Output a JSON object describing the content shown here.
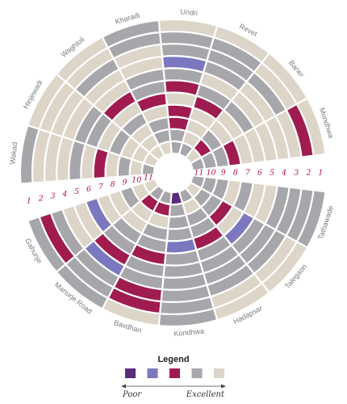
{
  "chart_data": {
    "type": "radial-heatmap",
    "title": "",
    "rings": [
      "1",
      "2",
      "3",
      "4",
      "5",
      "6",
      "7",
      "8",
      "9",
      "10",
      "11"
    ],
    "locations": [
      "Undri",
      "Revet",
      "Baner",
      "Mundhwa",
      "Tathawade",
      "Talegaon",
      "Hadapsar",
      "Kondhwa",
      "Bavdhan",
      "Manurje Road",
      "Gahunje",
      "Wakad",
      "Hinjewadi",
      "Waghloli",
      "Kharadi"
    ],
    "scale": {
      "levels": [
        1,
        2,
        3,
        4,
        5
      ],
      "colors": [
        "#5b2a78",
        "#7b78c0",
        "#a01c50",
        "#a7a7ab",
        "#dcd5c8"
      ],
      "low_label": "Poor",
      "high_label": "Excellent"
    },
    "values": [
      [
        5,
        4,
        4,
        2,
        4,
        3,
        5,
        3,
        3,
        4,
        4
      ],
      [
        5,
        4,
        4,
        4,
        5,
        4,
        3,
        5,
        5,
        5,
        4
      ],
      [
        5,
        5,
        4,
        5,
        5,
        4,
        5,
        5,
        4,
        3,
        5
      ],
      [
        5,
        3,
        5,
        5,
        5,
        5,
        5,
        3,
        4,
        4,
        4
      ],
      [
        4,
        4,
        4,
        4,
        5,
        5,
        4,
        5,
        4,
        4,
        4
      ],
      [
        5,
        5,
        4,
        4,
        4,
        2,
        5,
        3,
        4,
        4,
        5
      ],
      [
        5,
        5,
        4,
        4,
        4,
        4,
        3,
        4,
        4,
        5,
        4
      ],
      [
        4,
        4,
        4,
        4,
        4,
        4,
        2,
        4,
        4,
        4,
        1
      ],
      [
        5,
        3,
        3,
        4,
        4,
        3,
        4,
        4,
        5,
        3,
        4
      ],
      [
        4,
        4,
        4,
        2,
        3,
        4,
        4,
        5,
        5,
        3,
        4
      ],
      [
        4,
        3,
        4,
        5,
        5,
        2,
        5,
        5,
        4,
        5,
        5
      ],
      [
        4,
        5,
        5,
        5,
        4,
        5,
        3,
        5,
        4,
        5,
        4
      ],
      [
        5,
        5,
        5,
        5,
        4,
        4,
        5,
        4,
        5,
        5,
        5
      ],
      [
        5,
        5,
        4,
        5,
        5,
        3,
        5,
        4,
        5,
        5,
        5
      ],
      [
        4,
        4,
        5,
        5,
        4,
        4,
        3,
        5,
        4,
        4,
        5
      ]
    ],
    "legend": {
      "title": "Legend",
      "placement": "bottom-center"
    }
  }
}
